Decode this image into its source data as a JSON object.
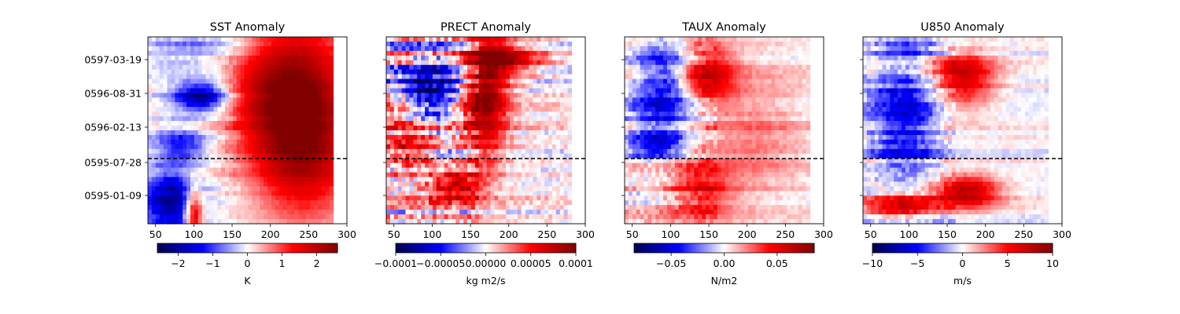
{
  "chart_data": [
    {
      "type": "heatmap",
      "title": "SST Anomaly",
      "x_ticks": [
        "50",
        "100",
        "150",
        "200",
        "250",
        "300"
      ],
      "xlim": [
        40,
        300
      ],
      "data_x_extent": [
        40,
        282
      ],
      "y_ticks": [
        "0597-03-19",
        "0596-08-31",
        "0596-02-13",
        "0595-07-28",
        "0595-01-09"
      ],
      "reference_line": "0595-07-28",
      "colorbar": {
        "label": "K",
        "range": [
          -2.6,
          2.6
        ],
        "ticks": [
          "−2",
          "−1",
          "0",
          "1",
          "2"
        ],
        "tick_values": [
          -2,
          -1,
          0,
          1,
          2
        ]
      },
      "colormap": "seismic",
      "pattern": {
        "description": "Strong warm anomaly east of ~160 from late 0595 through 0597; cold patches near 60-150 early and around 0596-08",
        "blobs": [
          {
            "x": 225,
            "y": 0.72,
            "sx": 55,
            "sy": 0.28,
            "a": 0.95
          },
          {
            "x": 245,
            "y": 0.35,
            "sx": 45,
            "sy": 0.25,
            "a": 0.6
          },
          {
            "x": 110,
            "y": 0.68,
            "sx": 25,
            "sy": 0.06,
            "a": -0.9
          },
          {
            "x": 70,
            "y": 0.12,
            "sx": 25,
            "sy": 0.12,
            "a": -0.8
          },
          {
            "x": 85,
            "y": 0.42,
            "sx": 25,
            "sy": 0.06,
            "a": -0.5
          },
          {
            "x": 100,
            "y": 0.06,
            "sx": 8,
            "sy": 0.1,
            "a": 0.8
          },
          {
            "x": 120,
            "y": 0.95,
            "sx": 60,
            "sy": 0.06,
            "a": -0.3
          }
        ]
      }
    },
    {
      "type": "heatmap",
      "title": "PRECT Anomaly",
      "x_ticks": [
        "50",
        "100",
        "150",
        "200",
        "250",
        "300"
      ],
      "xlim": [
        40,
        300
      ],
      "data_x_extent": [
        40,
        282
      ],
      "y_ticks": [
        "0597-03-19",
        "0596-08-31",
        "0596-02-13",
        "0595-07-28",
        "0595-01-09"
      ],
      "reference_line": "0595-07-28",
      "colorbar": {
        "label": "kg m2/s",
        "range": [
          -0.0001,
          0.0001
        ],
        "ticks": [
          "−0.0001",
          "−0.00005",
          "0.00000",
          "0.00005",
          "0.0001"
        ],
        "tick_values": [
          -0.0001,
          -5e-05,
          0,
          5e-05,
          0.0001
        ]
      },
      "colormap": "seismic",
      "pattern": {
        "description": "Noisy alternating anomalies west of 150; coherent positive band near 160-200 in 0596",
        "blobs": [
          {
            "x": 170,
            "y": 0.7,
            "sx": 20,
            "sy": 0.25,
            "a": 0.9
          },
          {
            "x": 200,
            "y": 0.88,
            "sx": 30,
            "sy": 0.06,
            "a": 0.7
          },
          {
            "x": 100,
            "y": 0.7,
            "sx": 25,
            "sy": 0.1,
            "a": -0.8
          },
          {
            "x": 130,
            "y": 0.2,
            "sx": 25,
            "sy": 0.06,
            "a": 0.7
          },
          {
            "x": 70,
            "y": 0.42,
            "sx": 20,
            "sy": 0.08,
            "a": 0.6
          }
        ]
      }
    },
    {
      "type": "heatmap",
      "title": "TAUX Anomaly",
      "x_ticks": [
        "50",
        "100",
        "150",
        "200",
        "250",
        "300"
      ],
      "xlim": [
        40,
        300
      ],
      "data_x_extent": [
        40,
        282
      ],
      "y_ticks": [
        "0597-03-19",
        "0596-08-31",
        "0596-02-13",
        "0595-07-28",
        "0595-01-09"
      ],
      "reference_line": "0595-07-28",
      "colorbar": {
        "label": "N/m2",
        "range": [
          -0.085,
          0.085
        ],
        "ticks": [
          "−0.05",
          "0.00",
          "0.05"
        ],
        "tick_values": [
          -0.05,
          0,
          0.05
        ]
      },
      "colormap": "seismic",
      "pattern": {
        "description": "Negative anomalies near 60-120 across most of the record, positive near 120-180",
        "blobs": [
          {
            "x": 90,
            "y": 0.72,
            "sx": 25,
            "sy": 0.2,
            "a": -0.55
          },
          {
            "x": 150,
            "y": 0.8,
            "sx": 25,
            "sy": 0.12,
            "a": 0.6
          },
          {
            "x": 140,
            "y": 0.18,
            "sx": 30,
            "sy": 0.12,
            "a": 0.45
          },
          {
            "x": 80,
            "y": 0.42,
            "sx": 25,
            "sy": 0.05,
            "a": -0.5
          },
          {
            "x": 210,
            "y": 0.5,
            "sx": 50,
            "sy": 0.25,
            "a": 0.25
          }
        ]
      }
    },
    {
      "type": "heatmap",
      "title": "U850 Anomaly",
      "x_ticks": [
        "50",
        "100",
        "150",
        "200",
        "250",
        "300"
      ],
      "xlim": [
        40,
        300
      ],
      "data_x_extent": [
        40,
        282
      ],
      "y_ticks": [
        "0597-03-19",
        "0596-08-31",
        "0596-02-13",
        "0595-07-28",
        "0595-01-09"
      ],
      "reference_line": "0595-07-28",
      "colorbar": {
        "label": "m/s",
        "range": [
          -10,
          10
        ],
        "ticks": [
          "−10",
          "−5",
          "0",
          "5",
          "10"
        ],
        "tick_values": [
          -10,
          -5,
          0,
          5,
          10
        ]
      },
      "colormap": "seismic",
      "pattern": {
        "description": "Negative anomalies 60-140 during 0596, positive band 140-200 in 0596-0597, strong positive near 150-200 early 0595",
        "blobs": [
          {
            "x": 95,
            "y": 0.55,
            "sx": 30,
            "sy": 0.2,
            "a": -0.6
          },
          {
            "x": 170,
            "y": 0.8,
            "sx": 30,
            "sy": 0.12,
            "a": 0.7
          },
          {
            "x": 175,
            "y": 0.17,
            "sx": 30,
            "sy": 0.06,
            "a": 0.8
          },
          {
            "x": 90,
            "y": 0.1,
            "sx": 30,
            "sy": 0.05,
            "a": 0.6
          },
          {
            "x": 120,
            "y": 0.95,
            "sx": 60,
            "sy": 0.05,
            "a": -0.4
          }
        ]
      }
    }
  ]
}
